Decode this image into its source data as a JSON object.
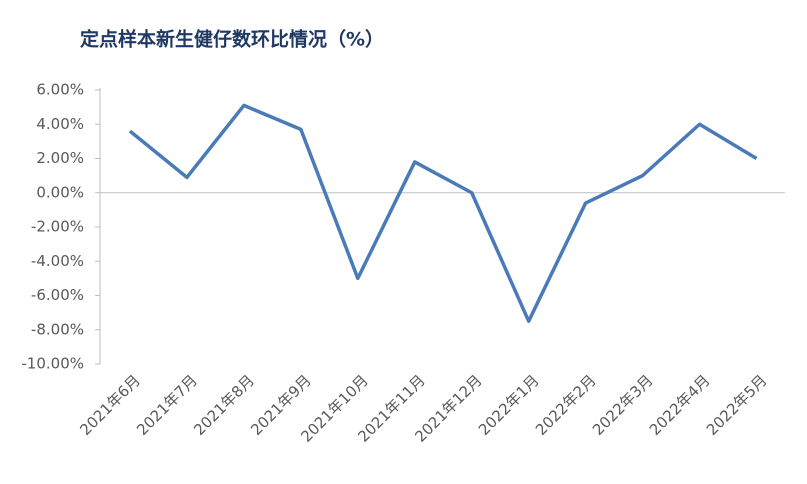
{
  "chart_data": {
    "type": "line",
    "title": "定点样本新生健仔数环比情况（%）",
    "categories": [
      "2021年6月",
      "2021年7月",
      "2021年8月",
      "2021年9月",
      "2021年10月",
      "2021年11月",
      "2021年12月",
      "2022年1月",
      "2022年2月",
      "2022年3月",
      "2022年4月",
      "2022年5月"
    ],
    "series": [
      {
        "name": "环比",
        "color": "#4a7ab8",
        "values": [
          3.6,
          0.9,
          5.1,
          3.7,
          -5.0,
          1.8,
          0.0,
          -7.5,
          -0.6,
          1.0,
          4.0,
          2.0
        ]
      }
    ],
    "ylim": [
      -10,
      6
    ],
    "yticks": [
      {
        "value": 6,
        "label": "6.00%"
      },
      {
        "value": 4,
        "label": "4.00%"
      },
      {
        "value": 2,
        "label": "2.00%"
      },
      {
        "value": 0,
        "label": "0.00%"
      },
      {
        "value": -2,
        "label": "-2.00%"
      },
      {
        "value": -4,
        "label": "-4.00%"
      },
      {
        "value": -6,
        "label": "-6.00%"
      },
      {
        "value": -8,
        "label": "-8.00%"
      },
      {
        "value": -10,
        "label": "-10.00%"
      }
    ],
    "grid": false
  }
}
